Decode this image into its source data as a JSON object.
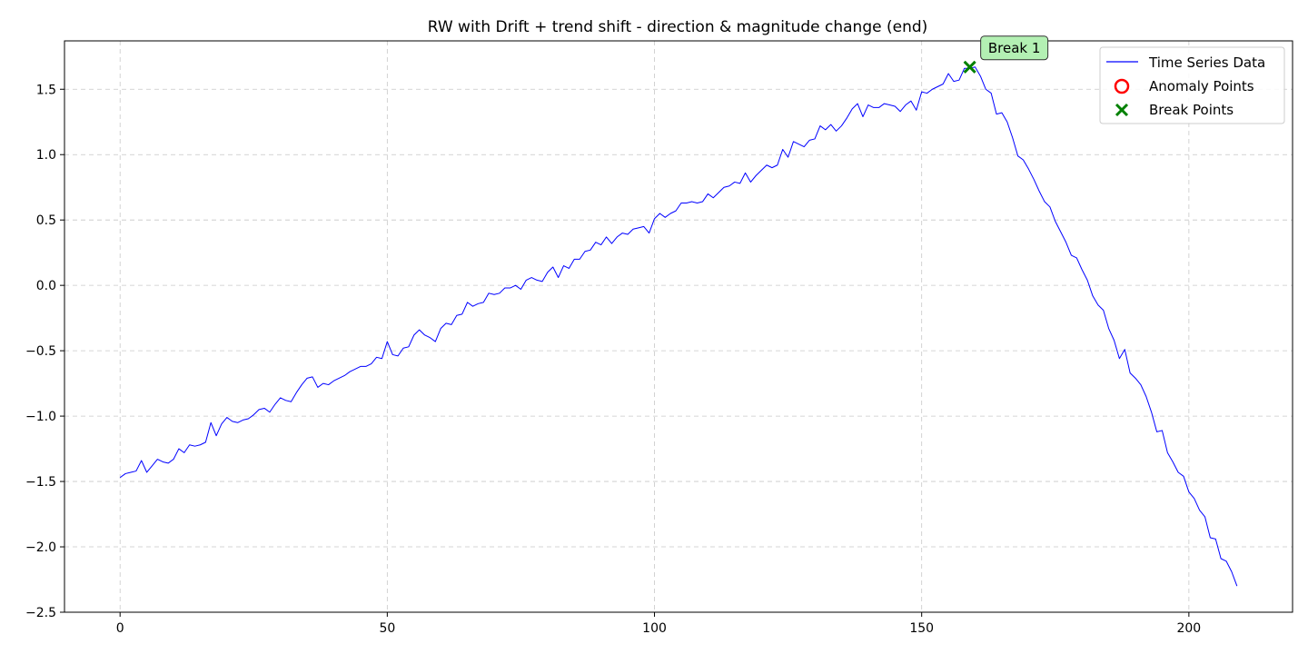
{
  "chart_data": {
    "type": "line",
    "title": "RW with Drift + trend shift - direction & magnitude change (end)",
    "xlabel": "",
    "ylabel": "",
    "xlim": [
      -10.4,
      219.4
    ],
    "ylim": [
      -2.5,
      1.87
    ],
    "xticks": [
      0,
      50,
      100,
      150,
      200
    ],
    "xtick_labels": [
      "0",
      "50",
      "100",
      "150",
      "200"
    ],
    "yticks": [
      -2.5,
      -2.0,
      -1.5,
      -1.0,
      -0.5,
      0.0,
      0.5,
      1.0,
      1.5
    ],
    "ytick_labels": [
      "−2.5",
      "−2.0",
      "−1.5",
      "−1.0",
      "−0.5",
      "0.0",
      "0.5",
      "1.0",
      "1.5"
    ],
    "grid": true,
    "legend_position": "top-right",
    "series": [
      {
        "name": "Time Series Data",
        "color": "#0000ff",
        "x_start": 0,
        "x_step": 1,
        "values": [
          -1.47,
          -1.44,
          -1.43,
          -1.42,
          -1.34,
          -1.43,
          -1.38,
          -1.33,
          -1.35,
          -1.36,
          -1.33,
          -1.25,
          -1.28,
          -1.22,
          -1.23,
          -1.22,
          -1.2,
          -1.05,
          -1.15,
          -1.06,
          -1.01,
          -1.04,
          -1.05,
          -1.03,
          -1.02,
          -0.99,
          -0.95,
          -0.94,
          -0.97,
          -0.91,
          -0.86,
          -0.88,
          -0.89,
          -0.82,
          -0.76,
          -0.71,
          -0.7,
          -0.78,
          -0.75,
          -0.76,
          -0.73,
          -0.71,
          -0.69,
          -0.66,
          -0.64,
          -0.62,
          -0.62,
          -0.6,
          -0.55,
          -0.56,
          -0.43,
          -0.53,
          -0.54,
          -0.48,
          -0.47,
          -0.38,
          -0.34,
          -0.38,
          -0.4,
          -0.43,
          -0.33,
          -0.29,
          -0.3,
          -0.23,
          -0.22,
          -0.13,
          -0.16,
          -0.14,
          -0.13,
          -0.06,
          -0.07,
          -0.06,
          -0.02,
          -0.02,
          0.0,
          -0.03,
          0.04,
          0.06,
          0.04,
          0.03,
          0.1,
          0.14,
          0.06,
          0.15,
          0.13,
          0.2,
          0.2,
          0.26,
          0.27,
          0.33,
          0.31,
          0.37,
          0.32,
          0.37,
          0.4,
          0.39,
          0.43,
          0.44,
          0.45,
          0.4,
          0.51,
          0.55,
          0.52,
          0.55,
          0.57,
          0.63,
          0.63,
          0.64,
          0.63,
          0.64,
          0.7,
          0.67,
          0.71,
          0.75,
          0.76,
          0.79,
          0.78,
          0.86,
          0.79,
          0.84,
          0.88,
          0.92,
          0.9,
          0.92,
          1.04,
          0.98,
          1.1,
          1.08,
          1.06,
          1.11,
          1.12,
          1.22,
          1.19,
          1.23,
          1.18,
          1.22,
          1.28,
          1.35,
          1.39,
          1.29,
          1.38,
          1.36,
          1.36,
          1.39,
          1.38,
          1.37,
          1.33,
          1.38,
          1.41,
          1.34,
          1.48,
          1.47,
          1.5,
          1.52,
          1.54,
          1.62,
          1.56,
          1.57,
          1.66,
          1.66,
          1.67,
          1.6,
          1.5,
          1.47,
          1.31,
          1.32,
          1.25,
          1.13,
          0.99,
          0.96,
          0.89,
          0.81,
          0.72,
          0.64,
          0.6,
          0.49,
          0.41,
          0.33,
          0.23,
          0.21,
          0.12,
          0.04,
          -0.08,
          -0.15,
          -0.19,
          -0.33,
          -0.42,
          -0.56,
          -0.49,
          -0.67,
          -0.71,
          -0.76,
          -0.85,
          -0.97,
          -1.12,
          -1.11,
          -1.28,
          -1.35,
          -1.43,
          -1.46,
          -1.58,
          -1.63,
          -1.72,
          -1.77,
          -1.93,
          -1.94,
          -2.09,
          -2.11,
          -2.19,
          -2.3
        ]
      },
      {
        "name": "Anomaly Points",
        "color": "#ff0000",
        "marker": "circle",
        "points": []
      },
      {
        "name": "Break Points",
        "color": "#008000",
        "marker": "x",
        "points": [
          {
            "x": 159,
            "y": 1.67
          }
        ]
      }
    ],
    "annotations": [
      {
        "text": "Break 1",
        "x": 159,
        "y": 1.67,
        "box_color": "#b3f0b3"
      }
    ]
  }
}
